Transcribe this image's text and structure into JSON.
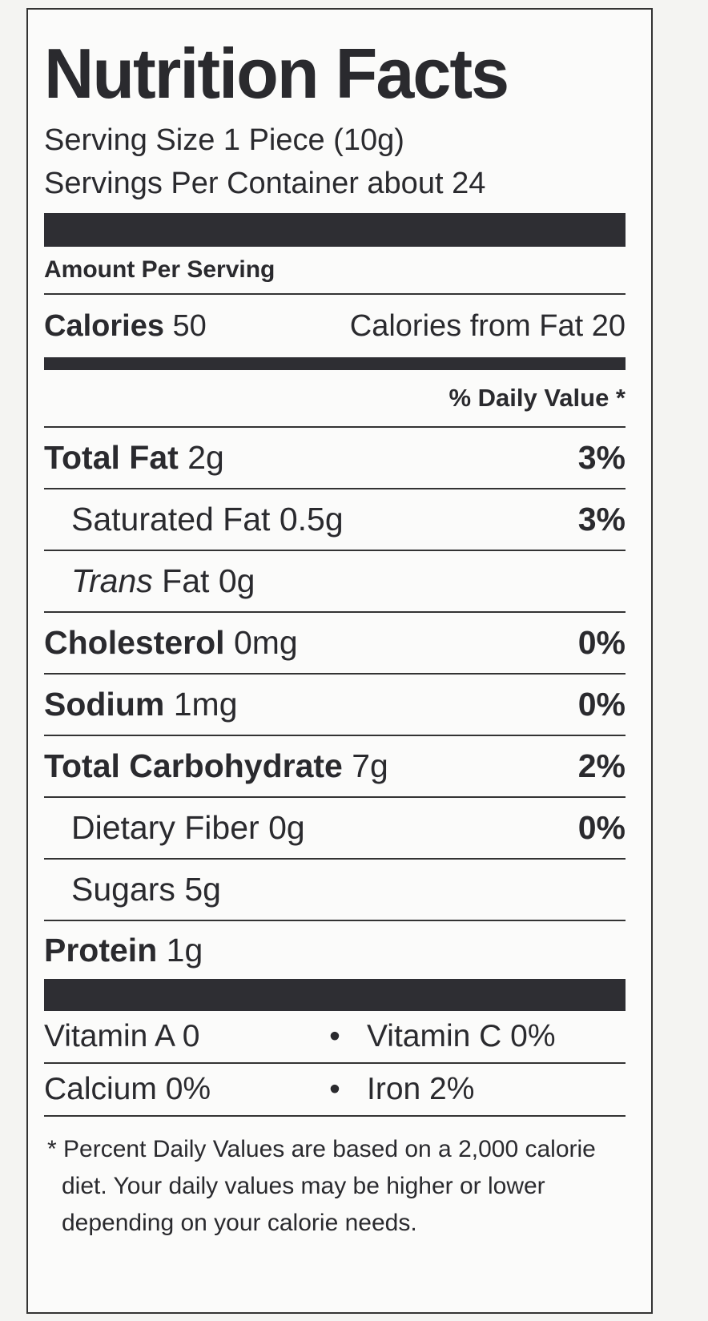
{
  "title": "Nutrition Facts",
  "serving_size": "Serving Size 1 Piece (10g)",
  "servings_per_container": "Servings Per Container about 24",
  "amount_per_serving": "Amount Per Serving",
  "calories": {
    "label": "Calories",
    "value": "50",
    "from_fat": "Calories from Fat 20"
  },
  "daily_value_header": "% Daily Value *",
  "nutrients": [
    {
      "name": "Total Fat",
      "amount": "2g",
      "dv": "3%"
    },
    {
      "name": "Saturated Fat",
      "amount": "0.5g",
      "dv": "3%"
    },
    {
      "name": "Trans",
      "name_rest": "Fat",
      "amount": "0g",
      "dv": ""
    },
    {
      "name": "Cholesterol",
      "amount": "0mg",
      "dv": "0%"
    },
    {
      "name": "Sodium",
      "amount": "1mg",
      "dv": "0%"
    },
    {
      "name": "Total Carbohydrate",
      "amount": "7g",
      "dv": "2%"
    },
    {
      "name": "Dietary Fiber",
      "amount": "0g",
      "dv": "0%"
    },
    {
      "name": "Sugars",
      "amount": "5g",
      "dv": ""
    },
    {
      "name": "Protein",
      "amount": "1g",
      "dv": ""
    }
  ],
  "vitamins": [
    {
      "left": "Vitamin A 0",
      "right": "Vitamin C 0%"
    },
    {
      "left": "Calcium 0%",
      "right": "Iron  2%"
    }
  ],
  "bullet": "•",
  "footnote": "* Percent Daily Values are based on a 2,000 calorie diet. Your daily values may be higher or lower depending on your calorie needs."
}
